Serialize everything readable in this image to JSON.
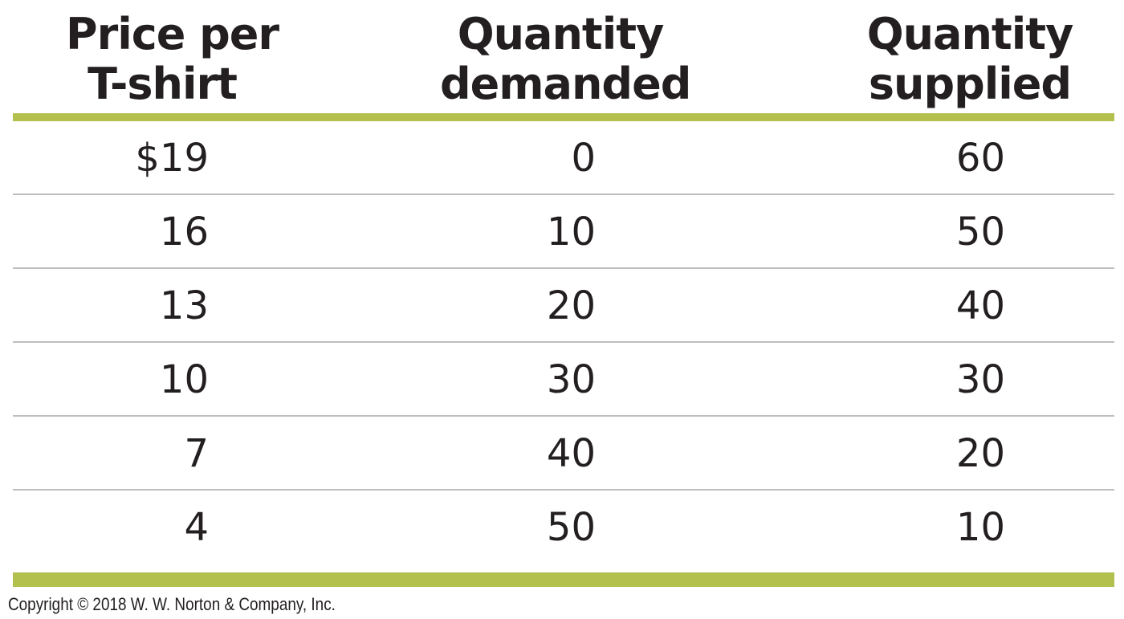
{
  "chart_data": {
    "type": "table",
    "columns": [
      {
        "key": "price",
        "label_lines": [
          "Price per",
          "T-shirt"
        ]
      },
      {
        "key": "demanded",
        "label_lines": [
          "Quantity",
          "demanded"
        ]
      },
      {
        "key": "supplied",
        "label_lines": [
          "Quantity",
          "supplied"
        ]
      }
    ],
    "rows": [
      {
        "price": "$19",
        "demanded": "0",
        "supplied": "60"
      },
      {
        "price": "16",
        "demanded": "10",
        "supplied": "50"
      },
      {
        "price": "13",
        "demanded": "20",
        "supplied": "40"
      },
      {
        "price": "10",
        "demanded": "30",
        "supplied": "30"
      },
      {
        "price": "7",
        "demanded": "40",
        "supplied": "20"
      },
      {
        "price": "4",
        "demanded": "50",
        "supplied": "10"
      }
    ]
  },
  "footer": {
    "copyright": "Copyright © 2018 W. W. Norton & Company, Inc."
  },
  "colors": {
    "accent_rule": "#b4c04d",
    "row_divider": "#bcbec0",
    "text": "#231f20"
  }
}
